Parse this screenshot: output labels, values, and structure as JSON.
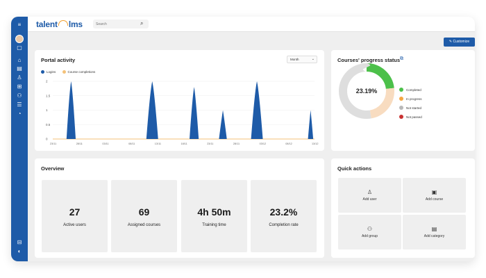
{
  "app": {
    "logo_left": "talent",
    "logo_right": "lms",
    "search_placeholder": "Search",
    "customize_label": "Customize"
  },
  "sidebar_icons": [
    "menu-icon",
    "avatar",
    "catalog-icon",
    "home-icon",
    "courses-icon",
    "users-icon",
    "branches-icon",
    "groups-icon",
    "categories-icon",
    "reports-icon",
    "help-icon",
    "account-icon"
  ],
  "portal_activity": {
    "title": "Portal activity",
    "period": "Month",
    "legend": [
      {
        "name": "Logins",
        "color": "#1e5ba8"
      },
      {
        "name": "Course completions",
        "color": "#f4c27a"
      }
    ]
  },
  "chart_data": {
    "type": "area",
    "title": "Portal activity",
    "y_ticks": [
      "0",
      "0.5",
      "1",
      "1.5",
      "2"
    ],
    "ylim": [
      0,
      2
    ],
    "x_ticks": [
      "23/11",
      "28/11",
      "03/11",
      "08/11",
      "13/11",
      "18/11",
      "23/11",
      "28/11",
      "03/12",
      "08/12",
      "13/12"
    ],
    "grid": true,
    "legend_position": "top-left",
    "series": [
      {
        "name": "Logins",
        "color": "#1e5ba8",
        "peaks": [
          {
            "x": 0.07,
            "y": 2,
            "w": 0.035
          },
          {
            "x": 0.38,
            "y": 2,
            "w": 0.045
          },
          {
            "x": 0.54,
            "y": 1.8,
            "w": 0.035
          },
          {
            "x": 0.65,
            "y": 1,
            "w": 0.03
          },
          {
            "x": 0.78,
            "y": 2,
            "w": 0.045
          },
          {
            "x": 0.985,
            "y": 1,
            "w": 0.02
          }
        ]
      },
      {
        "name": "Course completions",
        "color": "#f4c27a",
        "values": []
      }
    ]
  },
  "progress_status": {
    "title": "Courses' progress status",
    "center_label": "23.19%",
    "chart_data": {
      "type": "pie",
      "slices": [
        {
          "name": "Completed",
          "value": 23.19,
          "color": "#4cc04a"
        },
        {
          "name": "In progress",
          "value": 24.0,
          "color": "#f8dcc0"
        },
        {
          "name": "Not started",
          "value": 52.81,
          "color": "#dedede"
        },
        {
          "name": "Not passed",
          "value": 0,
          "color": "#c93232"
        }
      ]
    },
    "legend": [
      {
        "name": "Completed",
        "color": "#4cc04a"
      },
      {
        "name": "In progress",
        "color": "#f5a742"
      },
      {
        "name": "Not started",
        "color": "#b8b8b8"
      },
      {
        "name": "Not passed",
        "color": "#c93232"
      }
    ]
  },
  "overview": {
    "title": "Overview",
    "stats": [
      {
        "value": "27",
        "label": "Active users"
      },
      {
        "value": "69",
        "label": "Assigned courses"
      },
      {
        "value": "4h 50m",
        "label": "Training time"
      },
      {
        "value": "23.2%",
        "label": "Completion rate"
      }
    ]
  },
  "quick_actions": {
    "title": "Quick actions",
    "items": [
      {
        "label": "Add user",
        "icon": "user-icon",
        "glyph": "♙"
      },
      {
        "label": "Add course",
        "icon": "course-icon",
        "glyph": "▣"
      },
      {
        "label": "Add group",
        "icon": "group-icon",
        "glyph": "⚇"
      },
      {
        "label": "Add category",
        "icon": "category-icon",
        "glyph": "▤"
      }
    ]
  }
}
